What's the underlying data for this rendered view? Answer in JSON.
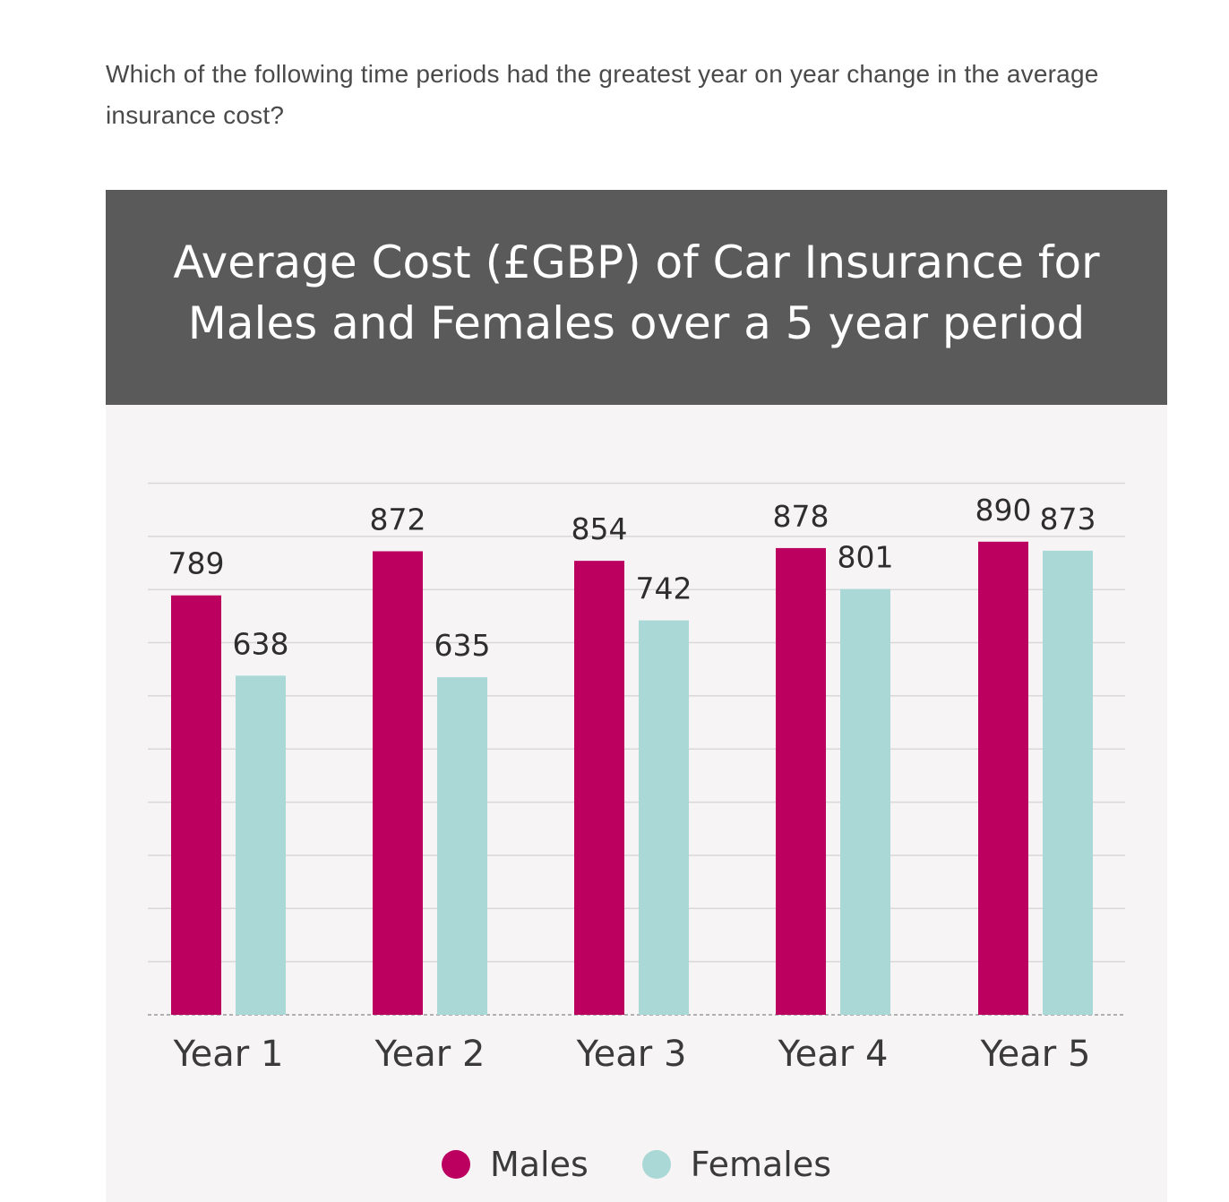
{
  "question": {
    "text": "Which of the following time periods had the greatest year on year change in the average insurance cost?"
  },
  "chart_data": {
    "type": "bar",
    "title_lines": [
      "Average Cost (£GBP) of Car Insurance for",
      "Males and Females over a 5 year period"
    ],
    "categories": [
      "Year 1",
      "Year 2",
      "Year 3",
      "Year 4",
      "Year 5"
    ],
    "series": [
      {
        "name": "Males",
        "color": "#bb0060",
        "values": [
          789,
          872,
          854,
          878,
          890
        ]
      },
      {
        "name": "Females",
        "color": "#a9d8d6",
        "values": [
          638,
          635,
          742,
          801,
          873
        ]
      }
    ],
    "xlabel": "",
    "ylabel": "",
    "ylim": [
      0,
      1000
    ],
    "grid": true,
    "legend": "bottom-center"
  },
  "colors": {
    "header_bg": "#5a5a5a",
    "chart_bg": "#f6f4f5",
    "males": "#bb0060",
    "females": "#a9d8d6"
  }
}
